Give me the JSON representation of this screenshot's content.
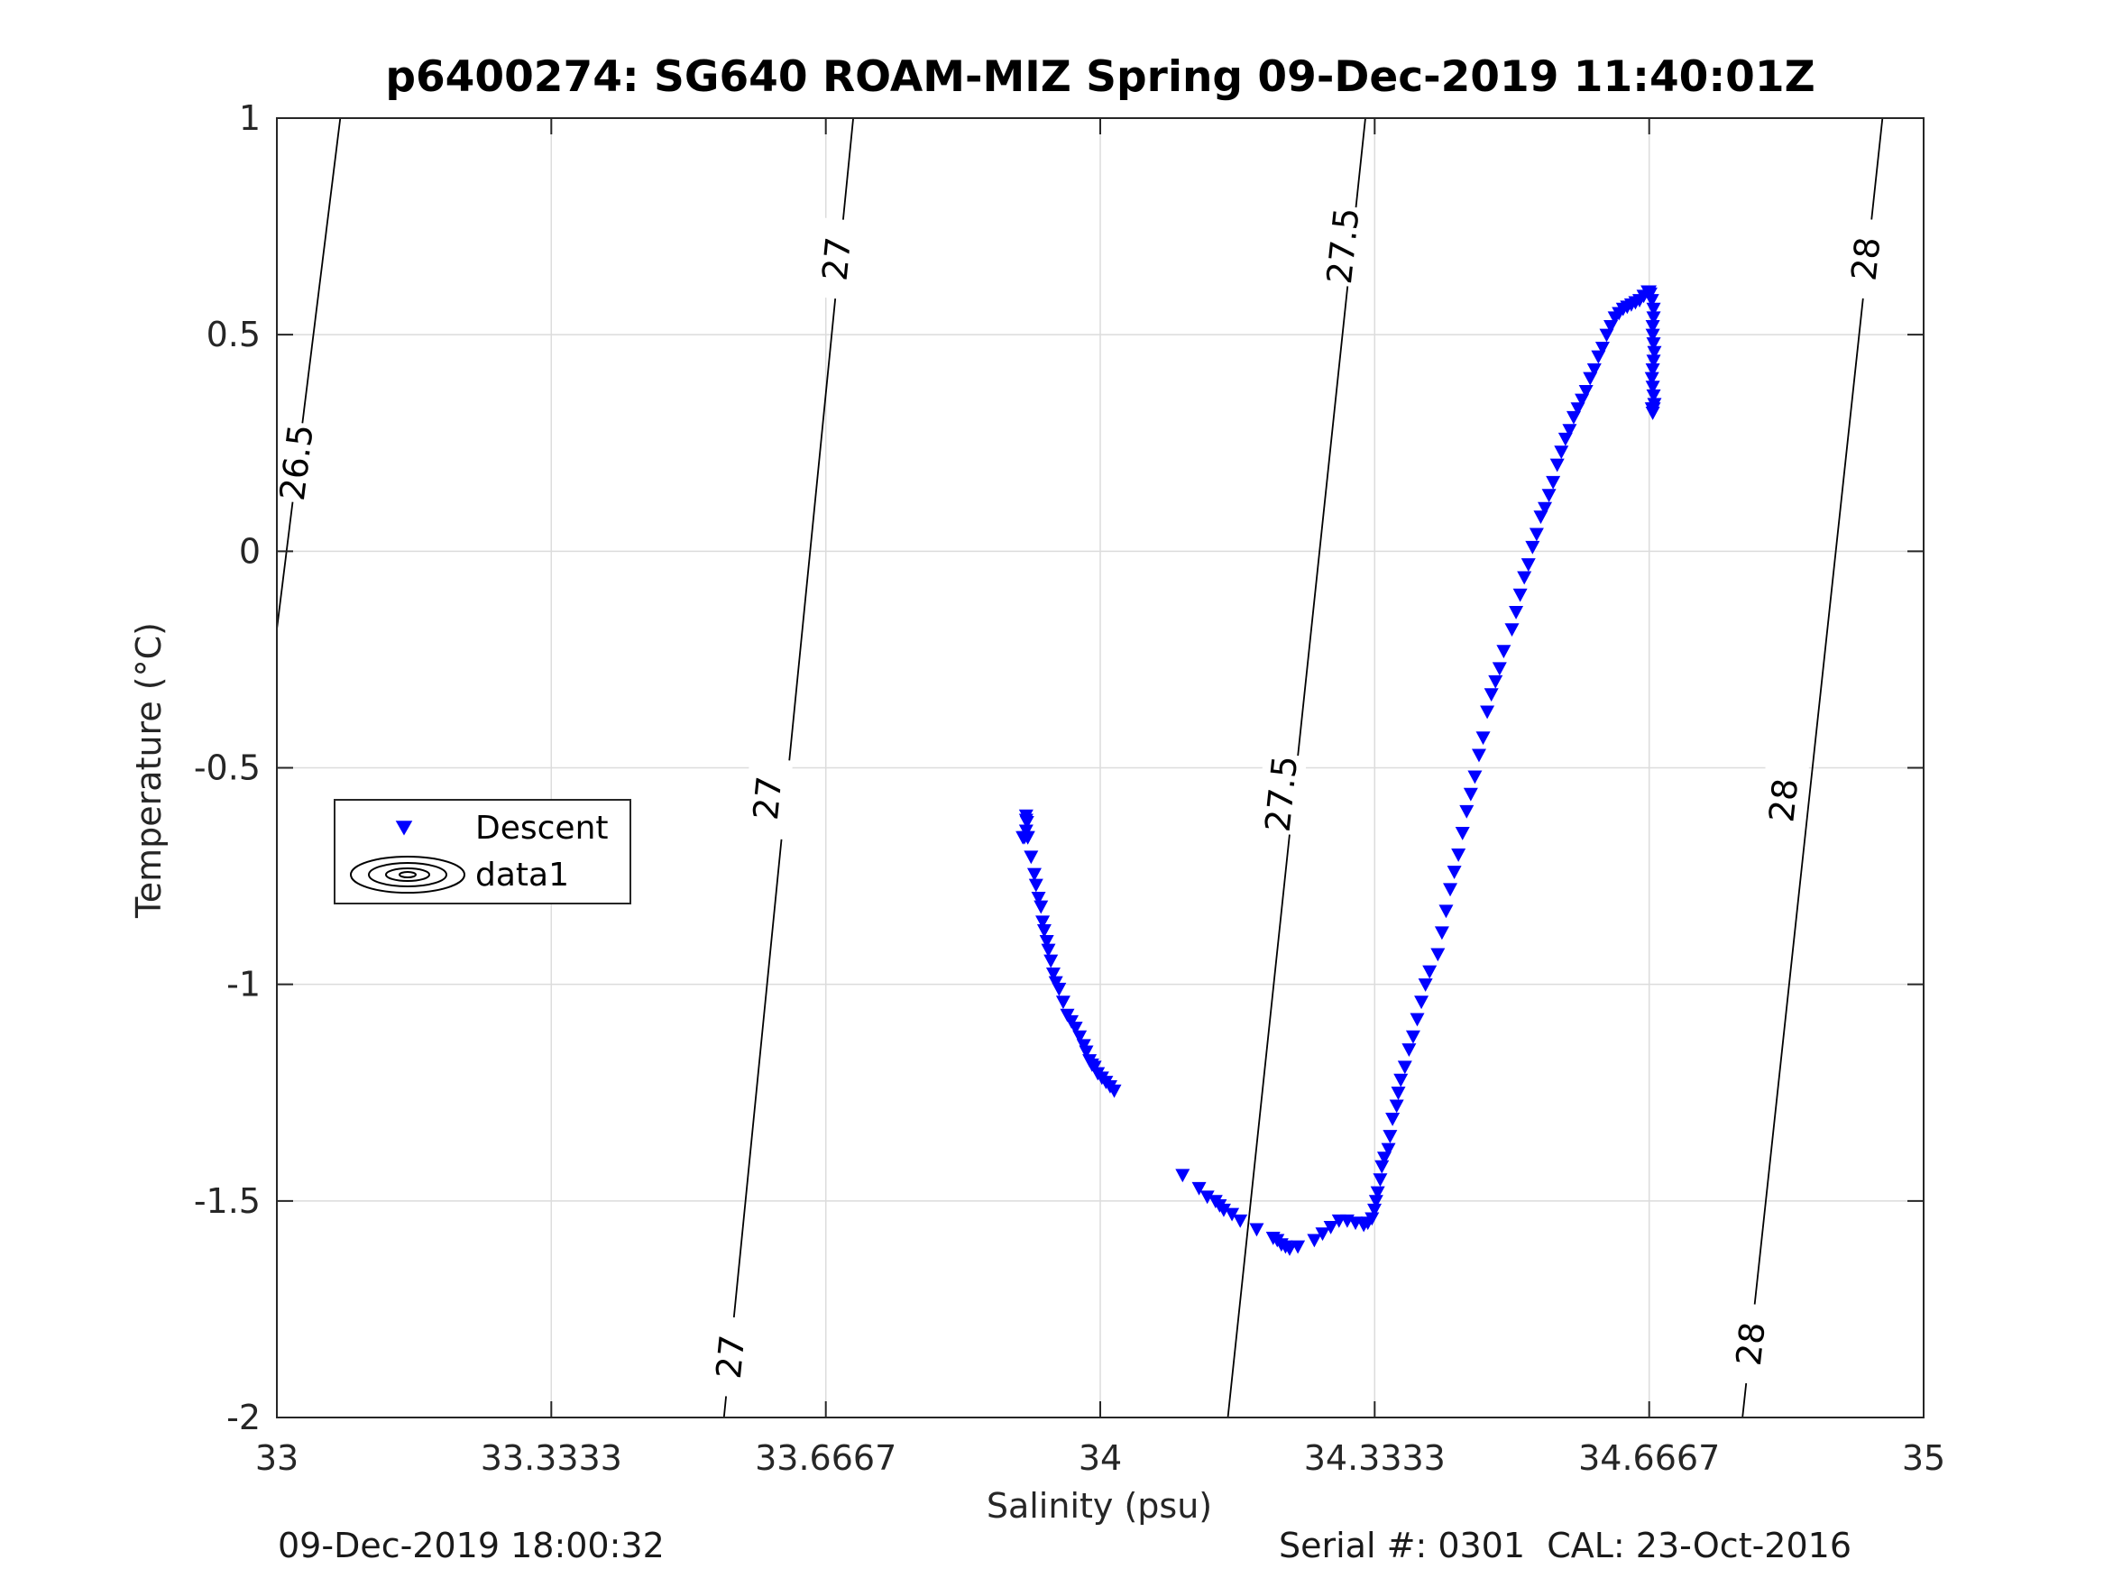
{
  "chart_data": {
    "type": "scatter",
    "title": "p6400274: SG640 ROAM-MIZ Spring 09-Dec-2019 11:40:01Z",
    "xlabel": "Salinity (psu)",
    "ylabel": "Temperature (°C)",
    "xlim": [
      33,
      35
    ],
    "ylim": [
      -2,
      1
    ],
    "xticks": [
      33,
      33.3333,
      33.6667,
      34,
      34.3333,
      34.6667,
      35
    ],
    "xtick_labels": [
      "33",
      "33.3333",
      "33.6667",
      "34",
      "34.3333",
      "34.6667",
      "35"
    ],
    "yticks": [
      -2,
      -1.5,
      -1,
      -0.5,
      0,
      0.5,
      1
    ],
    "ytick_labels": [
      "-2",
      "-1.5",
      "-1",
      "-0.5",
      "0",
      "0.5",
      "1"
    ],
    "grid": true,
    "legend": {
      "placement": "left-middle",
      "entries": [
        "Descent",
        "data1"
      ]
    },
    "contours": [
      {
        "level": "26.5",
        "points": [
          [
            33.0,
            -0.18
          ],
          [
            33.077,
            1.0
          ]
        ],
        "labels": [
          [
            33.024,
            0.205
          ]
        ]
      },
      {
        "level": "27",
        "points": [
          [
            33.543,
            -2.0
          ],
          [
            33.7,
            1.0
          ]
        ],
        "labels": [
          [
            33.551,
            -1.86
          ],
          [
            33.596,
            -0.57
          ],
          [
            33.68,
            0.675
          ]
        ]
      },
      {
        "level": "27.5",
        "points": [
          [
            34.155,
            -2.0
          ],
          [
            34.322,
            1.0
          ]
        ],
        "labels": [
          [
            34.22,
            -0.56
          ],
          [
            34.295,
            0.705
          ]
        ]
      },
      {
        "level": "28",
        "points": [
          [
            34.78,
            -2.0
          ],
          [
            34.95,
            1.0
          ]
        ],
        "labels": [
          [
            34.79,
            -1.83
          ],
          [
            34.83,
            -0.575
          ],
          [
            34.93,
            0.675
          ]
        ]
      }
    ],
    "series": [
      {
        "name": "Descent",
        "marker": "triangle-down",
        "color": "#0000ff",
        "x": [
          33.91,
          33.911,
          33.912,
          33.91,
          33.908,
          33.906,
          33.91,
          33.912,
          33.916,
          33.92,
          33.922,
          33.925,
          33.928,
          33.93,
          33.932,
          33.935,
          33.937,
          33.94,
          33.943,
          33.946,
          33.95,
          33.955,
          33.96,
          33.965,
          33.97,
          33.975,
          33.98,
          33.983,
          33.987,
          33.99,
          33.993,
          33.997,
          34.002,
          34.007,
          34.012,
          34.017,
          34.1,
          34.12,
          34.13,
          34.14,
          34.145,
          34.15,
          34.16,
          34.17,
          34.19,
          34.21,
          34.215,
          34.22,
          34.225,
          34.23,
          34.24,
          34.26,
          34.27,
          34.28,
          34.29,
          34.3,
          34.31,
          34.32,
          34.325,
          34.33,
          34.333,
          34.335,
          34.337,
          34.34,
          34.342,
          34.345,
          34.35,
          34.352,
          34.355,
          34.36,
          34.362,
          34.365,
          34.37,
          34.375,
          34.38,
          34.385,
          34.39,
          34.395,
          34.4,
          34.41,
          34.415,
          34.42,
          34.425,
          34.43,
          34.435,
          34.44,
          34.445,
          34.45,
          34.455,
          34.46,
          34.465,
          34.47,
          34.475,
          34.48,
          34.485,
          34.49,
          34.5,
          34.505,
          34.51,
          34.515,
          34.52,
          34.525,
          34.53,
          34.535,
          34.54,
          34.545,
          34.55,
          34.555,
          34.56,
          34.565,
          34.57,
          34.575,
          34.58,
          34.585,
          34.59,
          34.595,
          34.6,
          34.605,
          34.61,
          34.615,
          34.62,
          34.625,
          34.63,
          34.635,
          34.64,
          34.645,
          34.65,
          34.655,
          34.66,
          34.665,
          34.667,
          34.668,
          34.67,
          34.672,
          34.672,
          34.671,
          34.671,
          34.672,
          34.673,
          34.672,
          34.671,
          34.67,
          34.671,
          34.672,
          34.673,
          34.672,
          34.671,
          34.67
        ],
        "y": [
          -0.645,
          -0.625,
          -0.66,
          -0.61,
          -0.66,
          -0.66,
          -0.62,
          -0.66,
          -0.705,
          -0.745,
          -0.77,
          -0.8,
          -0.82,
          -0.855,
          -0.875,
          -0.9,
          -0.92,
          -0.945,
          -0.975,
          -0.995,
          -1.01,
          -1.04,
          -1.07,
          -1.085,
          -1.1,
          -1.12,
          -1.14,
          -1.155,
          -1.175,
          -1.185,
          -1.19,
          -1.205,
          -1.215,
          -1.225,
          -1.235,
          -1.245,
          -1.44,
          -1.47,
          -1.49,
          -1.5,
          -1.51,
          -1.52,
          -1.53,
          -1.545,
          -1.565,
          -1.585,
          -1.59,
          -1.6,
          -1.605,
          -1.61,
          -1.605,
          -1.59,
          -1.575,
          -1.56,
          -1.545,
          -1.545,
          -1.55,
          -1.555,
          -1.55,
          -1.54,
          -1.52,
          -1.5,
          -1.48,
          -1.45,
          -1.42,
          -1.4,
          -1.38,
          -1.35,
          -1.31,
          -1.28,
          -1.25,
          -1.22,
          -1.19,
          -1.15,
          -1.12,
          -1.08,
          -1.04,
          -1.0,
          -0.97,
          -0.93,
          -0.88,
          -0.83,
          -0.78,
          -0.74,
          -0.7,
          -0.65,
          -0.6,
          -0.56,
          -0.52,
          -0.47,
          -0.43,
          -0.37,
          -0.33,
          -0.3,
          -0.27,
          -0.23,
          -0.18,
          -0.14,
          -0.1,
          -0.06,
          -0.03,
          0.01,
          0.04,
          0.08,
          0.1,
          0.13,
          0.16,
          0.2,
          0.23,
          0.26,
          0.28,
          0.31,
          0.33,
          0.35,
          0.37,
          0.4,
          0.42,
          0.45,
          0.47,
          0.5,
          0.52,
          0.54,
          0.55,
          0.56,
          0.565,
          0.57,
          0.575,
          0.58,
          0.59,
          0.6,
          0.6,
          0.595,
          0.58,
          0.56,
          0.54,
          0.52,
          0.5,
          0.48,
          0.46,
          0.44,
          0.42,
          0.4,
          0.38,
          0.36,
          0.34,
          0.33,
          0.32,
          0.33
        ]
      }
    ]
  },
  "footer": {
    "left": "09-Dec-2019 18:00:32",
    "right": "Serial #: 0301  CAL: 23-Oct-2016"
  }
}
